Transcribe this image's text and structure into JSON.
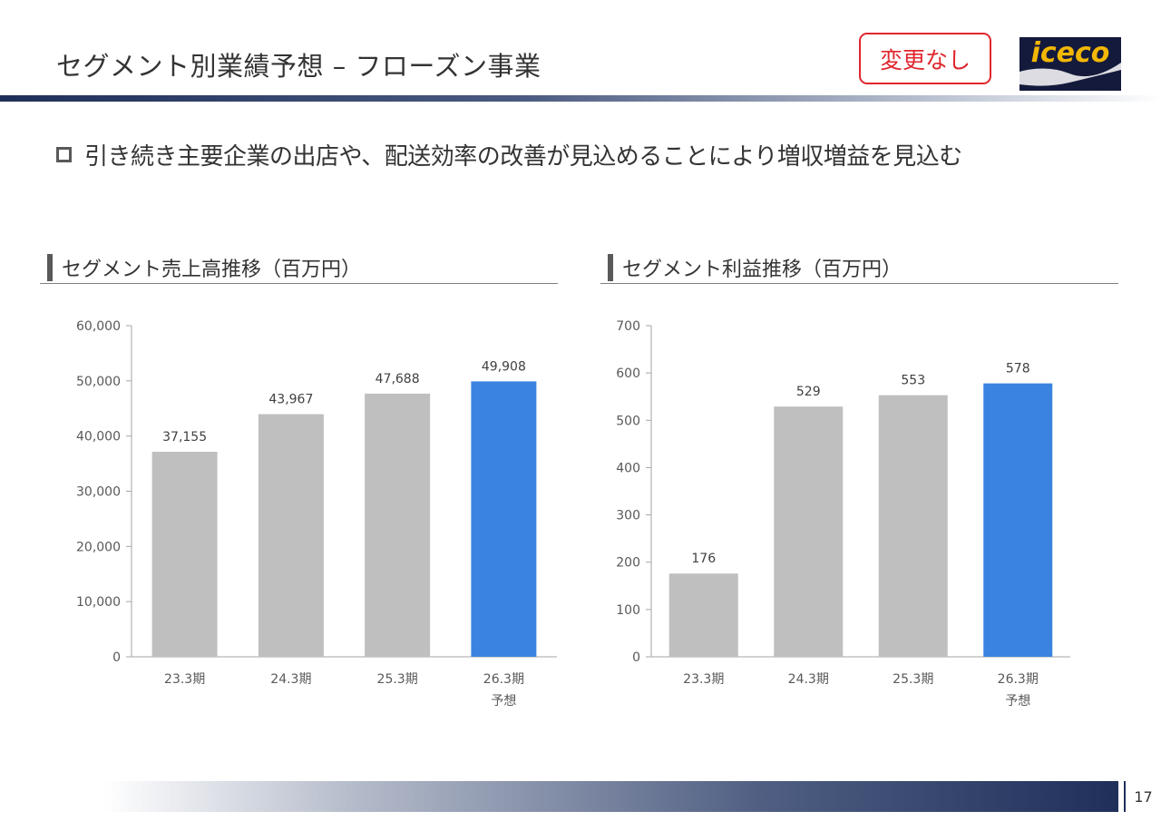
{
  "page": {
    "title": "セグメント別業績予想 – フローズン事業",
    "badge": "変更なし",
    "logo_text": "iceco",
    "bullet": "引き続き主要企業の出店や、配送効率の改善が見込めることにより増収増益を見込む",
    "page_number": "17"
  },
  "colors": {
    "actual_bar": "#bfbfbf",
    "forecast_bar": "#3a84e0",
    "badge": "#e0262e",
    "navy": "#1f2f5a",
    "logo_text": "#f2b705"
  },
  "chart_data": [
    {
      "type": "bar",
      "title": "セグメント売上高推移（百万円）",
      "categories": [
        "23.3期",
        "24.3期",
        "25.3期",
        "26.3期"
      ],
      "category_notes": [
        "",
        "",
        "",
        "予想"
      ],
      "values": [
        37155,
        43967,
        47688,
        49908
      ],
      "value_labels": [
        "37,155",
        "43,967",
        "47,688",
        "49,908"
      ],
      "forecast_flags": [
        false,
        false,
        false,
        true
      ],
      "ylim": [
        0,
        60000
      ],
      "yticks": [
        0,
        10000,
        20000,
        30000,
        40000,
        50000,
        60000
      ],
      "ytick_labels": [
        "0",
        "10,000",
        "20,000",
        "30,000",
        "40,000",
        "50,000",
        "60,000"
      ],
      "grid": false,
      "legend": "none"
    },
    {
      "type": "bar",
      "title": "セグメント利益推移（百万円）",
      "categories": [
        "23.3期",
        "24.3期",
        "25.3期",
        "26.3期"
      ],
      "category_notes": [
        "",
        "",
        "",
        "予想"
      ],
      "values": [
        176,
        529,
        553,
        578
      ],
      "value_labels": [
        "176",
        "529",
        "553",
        "578"
      ],
      "forecast_flags": [
        false,
        false,
        false,
        true
      ],
      "ylim": [
        0,
        700
      ],
      "yticks": [
        0,
        100,
        200,
        300,
        400,
        500,
        600,
        700
      ],
      "ytick_labels": [
        "0",
        "100",
        "200",
        "300",
        "400",
        "500",
        "600",
        "700"
      ],
      "grid": false,
      "legend": "none"
    }
  ]
}
